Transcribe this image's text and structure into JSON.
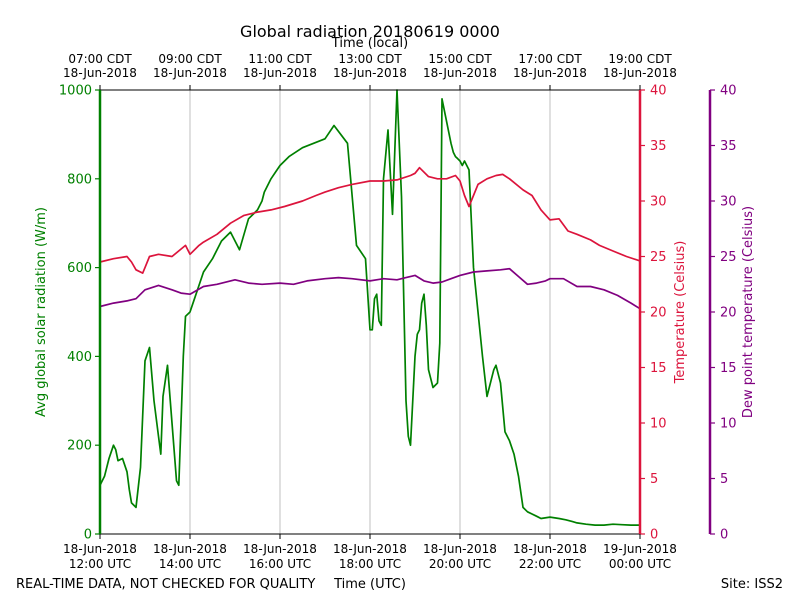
{
  "chart_data": {
    "type": "line",
    "title": "Global radiation 20180619 0000",
    "top_axis_label": "Time (local)",
    "xlabel": "Time (UTC)",
    "ylabel_left": "Avg global solar radiation (W/m)",
    "ylabel_right1": "Temperature (Celsius)",
    "ylabel_right2": "Dew point temperature (Celsius)",
    "footer_left": "REAL-TIME DATA, NOT CHECKED FOR QUALITY",
    "footer_right": "Site: ISS2",
    "x_range_hours_utc": [
      12,
      24
    ],
    "bottom_ticks": [
      {
        "h": 12,
        "date": "18-Jun-2018",
        "time": "12:00 UTC"
      },
      {
        "h": 14,
        "date": "18-Jun-2018",
        "time": "14:00 UTC"
      },
      {
        "h": 16,
        "date": "18-Jun-2018",
        "time": "16:00 UTC"
      },
      {
        "h": 18,
        "date": "18-Jun-2018",
        "time": "18:00 UTC"
      },
      {
        "h": 20,
        "date": "18-Jun-2018",
        "time": "20:00 UTC"
      },
      {
        "h": 22,
        "date": "18-Jun-2018",
        "time": "22:00 UTC"
      },
      {
        "h": 24,
        "date": "19-Jun-2018",
        "time": "00:00 UTC"
      }
    ],
    "top_ticks": [
      {
        "h": 12,
        "time": "07:00 CDT",
        "date": "18-Jun-2018"
      },
      {
        "h": 14,
        "time": "09:00 CDT",
        "date": "18-Jun-2018"
      },
      {
        "h": 16,
        "time": "11:00 CDT",
        "date": "18-Jun-2018"
      },
      {
        "h": 18,
        "time": "13:00 CDT",
        "date": "18-Jun-2018"
      },
      {
        "h": 20,
        "time": "15:00 CDT",
        "date": "18-Jun-2018"
      },
      {
        "h": 22,
        "time": "17:00 CDT",
        "date": "18-Jun-2018"
      },
      {
        "h": 24,
        "time": "19:00 CDT",
        "date": "18-Jun-2018"
      }
    ],
    "left_axis": {
      "min": 0,
      "max": 1000,
      "ticks": [
        0,
        200,
        400,
        600,
        800,
        1000
      ],
      "color": "#008000"
    },
    "right_axis1": {
      "min": 0,
      "max": 40,
      "ticks": [
        0,
        5,
        10,
        15,
        20,
        25,
        30,
        35,
        40
      ],
      "color": "#dc143c"
    },
    "right_axis2": {
      "min": 0,
      "max": 40,
      "ticks": [
        0,
        5,
        10,
        15,
        20,
        25,
        30,
        35,
        40
      ],
      "color": "#800080"
    },
    "series": [
      {
        "name": "Avg global solar radiation",
        "axis": "left",
        "color": "#008000",
        "x": [
          12.0,
          12.1,
          12.2,
          12.3,
          12.35,
          12.4,
          12.5,
          12.6,
          12.65,
          12.7,
          12.8,
          12.9,
          13.0,
          13.1,
          13.2,
          13.3,
          13.35,
          13.4,
          13.5,
          13.6,
          13.7,
          13.75,
          13.8,
          13.85,
          13.9,
          13.95,
          14.0,
          14.1,
          14.2,
          14.3,
          14.5,
          14.7,
          14.9,
          15.1,
          15.3,
          15.5,
          15.6,
          15.65,
          15.7,
          15.8,
          15.9,
          16.0,
          16.2,
          16.5,
          17.0,
          17.2,
          17.5,
          17.7,
          17.9,
          18.0,
          18.05,
          18.1,
          18.15,
          18.2,
          18.25,
          18.3,
          18.4,
          18.5,
          18.6,
          18.7,
          18.8,
          18.85,
          18.9,
          19.0,
          19.05,
          19.1,
          19.15,
          19.2,
          19.25,
          19.3,
          19.4,
          19.5,
          19.55,
          19.6,
          19.7,
          19.8,
          19.85,
          19.9,
          19.95,
          20.0,
          20.05,
          20.1,
          20.2,
          20.3,
          20.5,
          20.6,
          20.75,
          20.8,
          20.9,
          21.0,
          21.1,
          21.2,
          21.3,
          21.4,
          21.5,
          21.6,
          21.7,
          21.8,
          22.0,
          22.2,
          22.35,
          22.5,
          22.6,
          22.8,
          23.0,
          23.2,
          23.4,
          23.6,
          23.8,
          24.0
        ],
        "values": [
          110,
          130,
          170,
          200,
          190,
          165,
          170,
          140,
          100,
          70,
          60,
          150,
          390,
          420,
          300,
          220,
          180,
          310,
          380,
          250,
          120,
          110,
          250,
          400,
          490,
          495,
          500,
          530,
          560,
          590,
          620,
          660,
          680,
          640,
          710,
          730,
          750,
          770,
          780,
          800,
          815,
          830,
          850,
          870,
          890,
          920,
          880,
          650,
          620,
          460,
          460,
          530,
          540,
          480,
          470,
          800,
          910,
          720,
          1000,
          760,
          300,
          220,
          200,
          400,
          450,
          460,
          520,
          540,
          470,
          370,
          330,
          340,
          430,
          980,
          930,
          880,
          860,
          850,
          845,
          840,
          830,
          840,
          820,
          600,
          400,
          310,
          370,
          380,
          340,
          230,
          210,
          180,
          130,
          60,
          50,
          45,
          40,
          35,
          38,
          35,
          32,
          28,
          25,
          22,
          20,
          20,
          22,
          21,
          20,
          20
        ]
      },
      {
        "name": "Temperature",
        "axis": "right1",
        "color": "#dc143c",
        "x": [
          12.0,
          12.3,
          12.6,
          12.7,
          12.8,
          12.95,
          13.0,
          13.1,
          13.3,
          13.6,
          13.9,
          14.0,
          14.2,
          14.3,
          14.6,
          14.9,
          15.2,
          15.5,
          15.8,
          16.1,
          16.5,
          16.8,
          17.0,
          17.3,
          17.6,
          18.0,
          18.3,
          18.6,
          18.9,
          19.0,
          19.1,
          19.3,
          19.5,
          19.7,
          19.9,
          20.0,
          20.1,
          20.2,
          20.4,
          20.6,
          20.8,
          20.95,
          21.1,
          21.4,
          21.6,
          21.8,
          22.0,
          22.2,
          22.4,
          22.6,
          22.9,
          23.1,
          23.4,
          23.7,
          24.0
        ],
        "values": [
          24.5,
          24.8,
          25.0,
          24.5,
          23.8,
          23.5,
          24.0,
          25.0,
          25.2,
          25.0,
          26.0,
          25.2,
          26.0,
          26.3,
          27.0,
          28.0,
          28.7,
          29.0,
          29.2,
          29.5,
          30.0,
          30.5,
          30.8,
          31.2,
          31.5,
          31.8,
          31.8,
          31.9,
          32.3,
          32.5,
          33.0,
          32.2,
          32.0,
          32.0,
          32.3,
          31.8,
          30.5,
          29.5,
          31.5,
          32.0,
          32.3,
          32.4,
          32.0,
          31.0,
          30.5,
          29.2,
          28.3,
          28.4,
          27.3,
          27.0,
          26.5,
          26.0,
          25.5,
          25.0,
          24.6
        ]
      },
      {
        "name": "Dew point temperature",
        "axis": "right2",
        "color": "#800080",
        "x": [
          12.0,
          12.3,
          12.6,
          12.8,
          13.0,
          13.3,
          13.6,
          13.8,
          14.0,
          14.3,
          14.6,
          15.0,
          15.3,
          15.6,
          16.0,
          16.3,
          16.6,
          17.0,
          17.3,
          17.6,
          18.0,
          18.3,
          18.6,
          18.8,
          19.0,
          19.2,
          19.4,
          19.6,
          19.8,
          20.0,
          20.3,
          20.6,
          20.9,
          21.1,
          21.3,
          21.5,
          21.7,
          21.9,
          22.0,
          22.3,
          22.6,
          22.9,
          23.2,
          23.5,
          23.8,
          24.0
        ],
        "values": [
          20.5,
          20.8,
          21.0,
          21.2,
          22.0,
          22.4,
          22.0,
          21.7,
          21.6,
          22.3,
          22.5,
          22.9,
          22.6,
          22.5,
          22.6,
          22.5,
          22.8,
          23.0,
          23.1,
          23.0,
          22.8,
          23.0,
          22.9,
          23.1,
          23.3,
          22.8,
          22.6,
          22.7,
          23.0,
          23.3,
          23.6,
          23.7,
          23.8,
          23.9,
          23.2,
          22.5,
          22.6,
          22.8,
          23.0,
          23.0,
          22.3,
          22.3,
          22.0,
          21.5,
          20.8,
          20.3
        ]
      }
    ]
  }
}
